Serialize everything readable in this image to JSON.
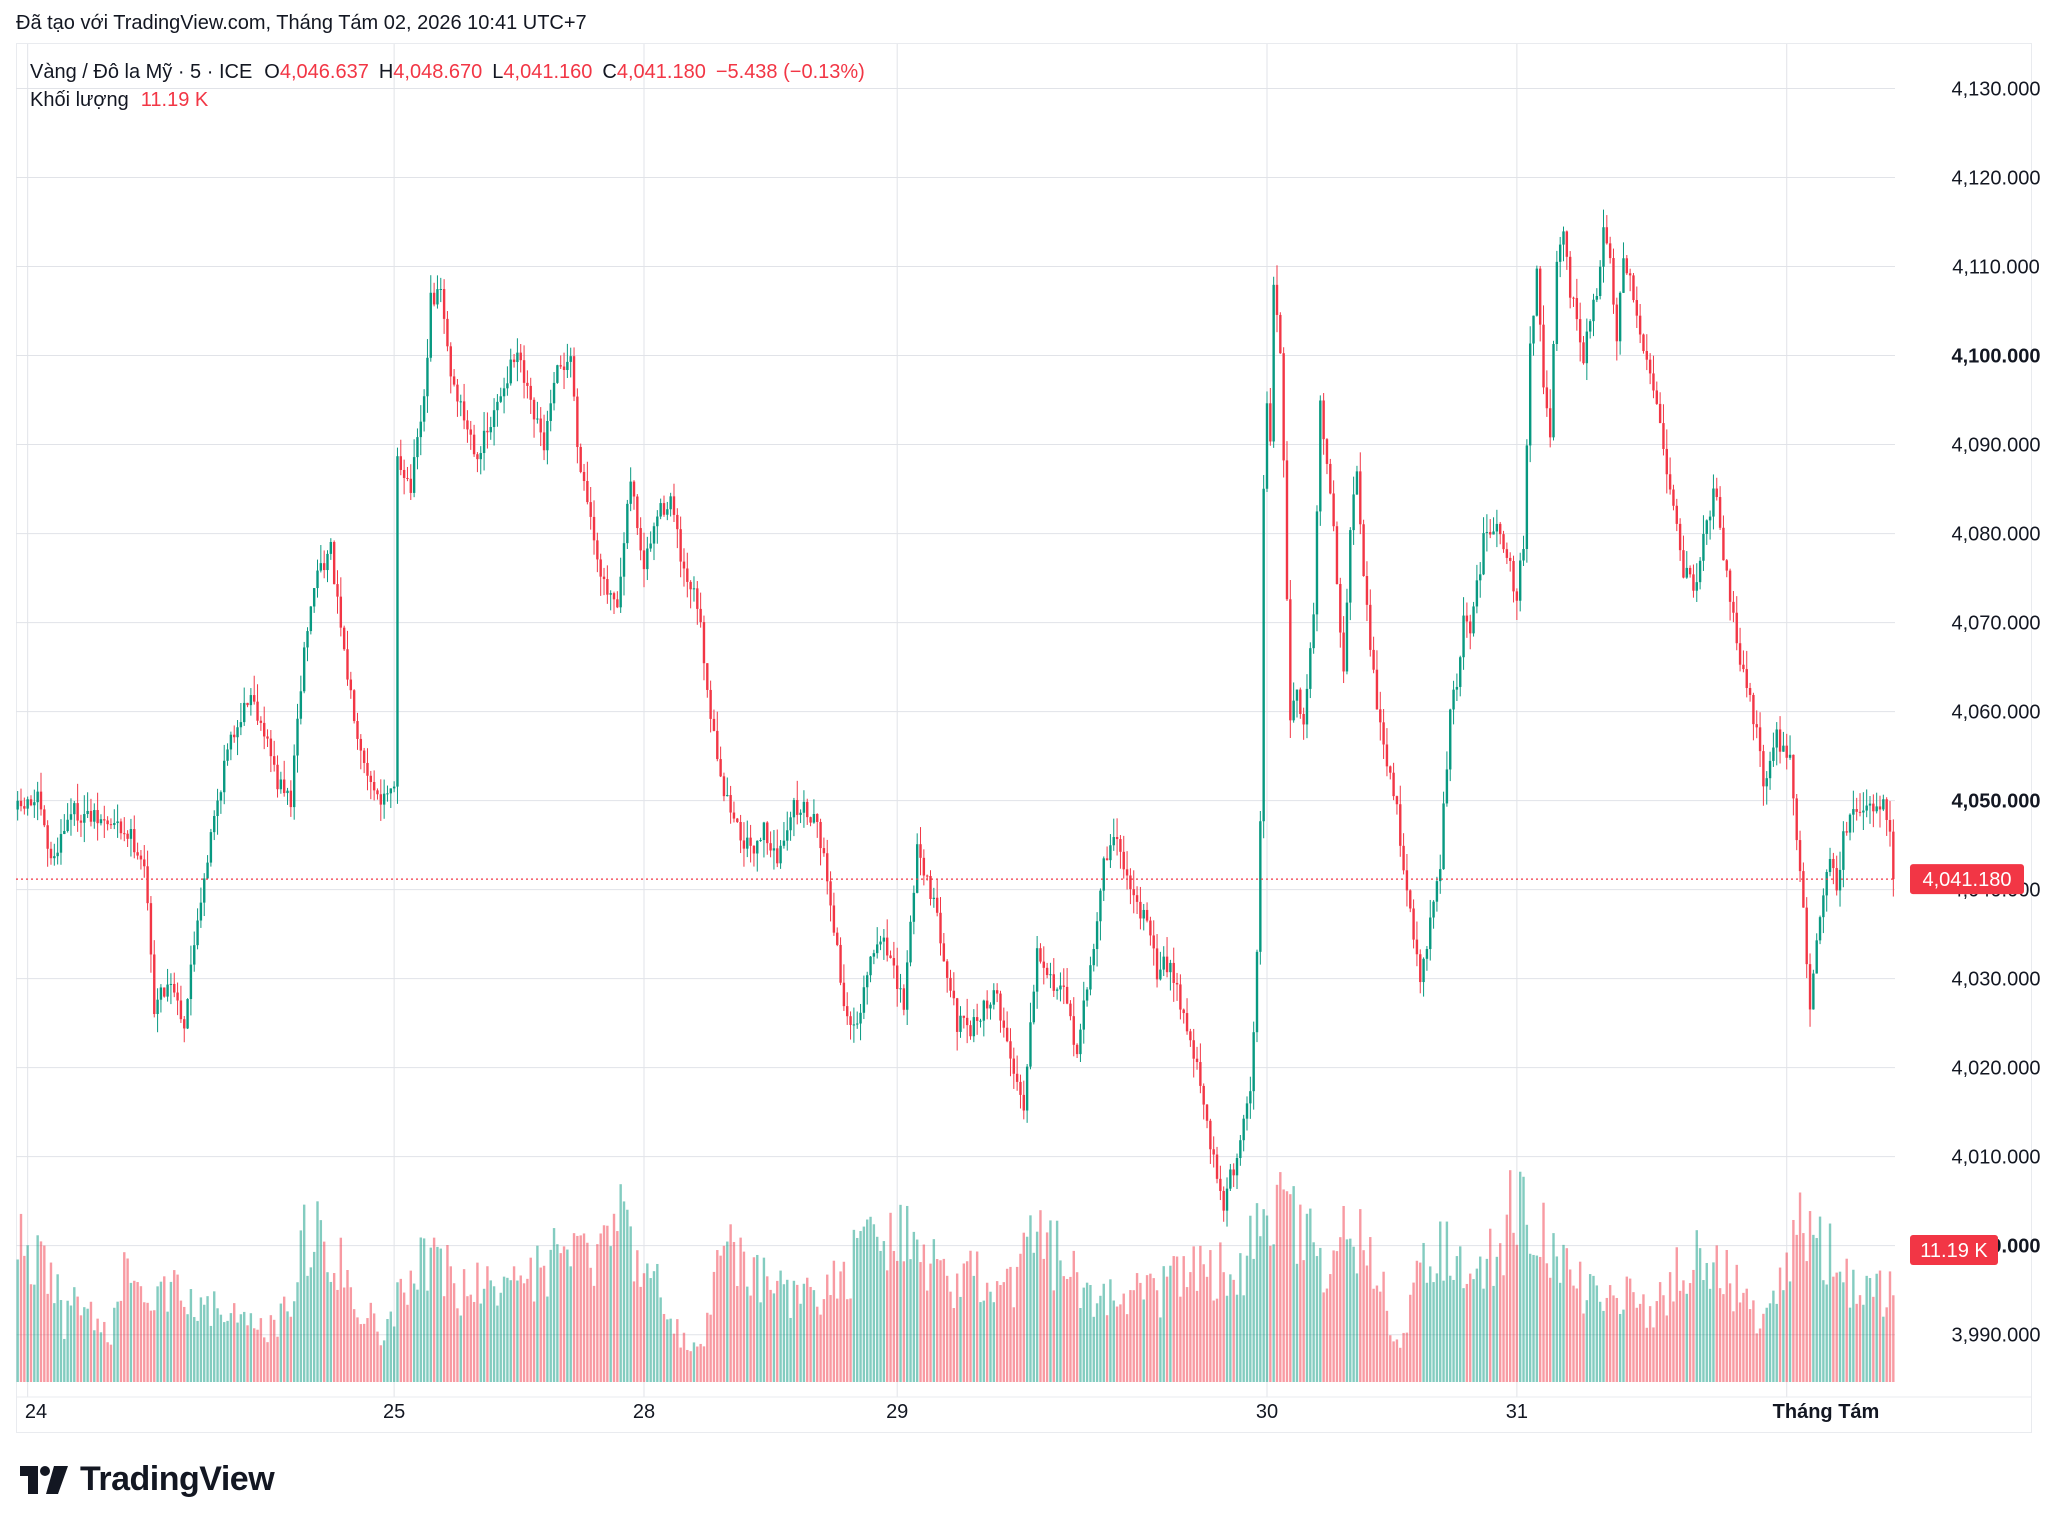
{
  "caption": "Đã tạo với TradingView.com, Tháng Tám 02, 2026 10:41 UTC+7",
  "legend": {
    "symbol": "Vàng / Đô la Mỹ · 5 · ICE",
    "open_label": "O",
    "open": "4,046.637",
    "high_label": "H",
    "high": "4,048.670",
    "low_label": "L",
    "low": "4,041.160",
    "close_label": "C",
    "close": "4,041.180",
    "change": "−5.438 (−0.13%)",
    "volume_label": "Khối lượng",
    "volume": "11.19 K"
  },
  "brand": {
    "name": "TradingView"
  },
  "colors": {
    "up": "#089981",
    "down": "#f23645",
    "grid": "#e1e3e8",
    "text": "#131722"
  },
  "chart_data": {
    "type": "candlestick",
    "symbol": "Vàng / Đô la Mỹ",
    "interval": "5",
    "ylim": [
      3983,
      4135
    ],
    "y_ticks": [
      {
        "value": 4130,
        "label": "4,130.000",
        "bold": false
      },
      {
        "value": 4120,
        "label": "4,120.000",
        "bold": false
      },
      {
        "value": 4110,
        "label": "4,110.000",
        "bold": false
      },
      {
        "value": 4100,
        "label": "4,100.000",
        "bold": true
      },
      {
        "value": 4090,
        "label": "4,090.000",
        "bold": false
      },
      {
        "value": 4080,
        "label": "4,080.000",
        "bold": false
      },
      {
        "value": 4070,
        "label": "4,070.000",
        "bold": false
      },
      {
        "value": 4060,
        "label": "4,060.000",
        "bold": false
      },
      {
        "value": 4050,
        "label": "4,050.000",
        "bold": true
      },
      {
        "value": 4040,
        "label": "4,040.000",
        "bold": false
      },
      {
        "value": 4030,
        "label": "4,030.000",
        "bold": false
      },
      {
        "value": 4020,
        "label": "4,020.000",
        "bold": false
      },
      {
        "value": 4010,
        "label": "4,010.000",
        "bold": false
      },
      {
        "value": 4000,
        "label": "4,000.000",
        "bold": true
      },
      {
        "value": 3990,
        "label": "3,990.000",
        "bold": false
      }
    ],
    "x_labels": [
      "24",
      "25",
      "28",
      "29",
      "30",
      "31",
      "Tháng Tám"
    ],
    "x_label_bold": [
      false,
      false,
      false,
      false,
      false,
      false,
      true
    ],
    "last_price": 4041.18,
    "last_price_label": "4,041.180",
    "last_volume_label": "11.19 K",
    "anchors": [
      [
        0,
        4049
      ],
      [
        6,
        4050
      ],
      [
        10,
        4043
      ],
      [
        16,
        4049
      ],
      [
        22,
        4048
      ],
      [
        30,
        4047
      ],
      [
        34,
        4046
      ],
      [
        38,
        4043
      ],
      [
        41,
        4027
      ],
      [
        46,
        4030
      ],
      [
        50,
        4025
      ],
      [
        54,
        4037
      ],
      [
        58,
        4046
      ],
      [
        62,
        4054
      ],
      [
        66,
        4059
      ],
      [
        70,
        4062
      ],
      [
        74,
        4058
      ],
      [
        78,
        4052
      ],
      [
        82,
        4050
      ],
      [
        86,
        4067
      ],
      [
        90,
        4076
      ],
      [
        94,
        4078
      ],
      [
        98,
        4066
      ],
      [
        102,
        4058
      ],
      [
        106,
        4052
      ],
      [
        110,
        4050
      ],
      [
        113,
        4051
      ],
      [
        114,
        4089
      ],
      [
        118,
        4085
      ],
      [
        122,
        4095
      ],
      [
        124,
        4106
      ],
      [
        127,
        4107
      ],
      [
        130,
        4098
      ],
      [
        134,
        4093
      ],
      [
        138,
        4089
      ],
      [
        142,
        4092
      ],
      [
        146,
        4097
      ],
      [
        150,
        4100
      ],
      [
        154,
        4094
      ],
      [
        158,
        4090
      ],
      [
        162,
        4098
      ],
      [
        166,
        4100
      ],
      [
        168,
        4090
      ],
      [
        172,
        4082
      ],
      [
        176,
        4074
      ],
      [
        180,
        4071
      ],
      [
        184,
        4086
      ],
      [
        188,
        4076
      ],
      [
        192,
        4082
      ],
      [
        196,
        4084
      ],
      [
        200,
        4075
      ],
      [
        204,
        4072
      ],
      [
        208,
        4060
      ],
      [
        212,
        4051
      ],
      [
        216,
        4047
      ],
      [
        220,
        4044
      ],
      [
        224,
        4047
      ],
      [
        228,
        4043
      ],
      [
        232,
        4049
      ],
      [
        236,
        4049
      ],
      [
        240,
        4048
      ],
      [
        244,
        4039
      ],
      [
        248,
        4027
      ],
      [
        252,
        4024
      ],
      [
        256,
        4032
      ],
      [
        260,
        4035
      ],
      [
        264,
        4029
      ],
      [
        266,
        4027
      ],
      [
        270,
        4045
      ],
      [
        274,
        4040
      ],
      [
        278,
        4033
      ],
      [
        282,
        4025
      ],
      [
        286,
        4024
      ],
      [
        290,
        4027
      ],
      [
        294,
        4028
      ],
      [
        298,
        4021
      ],
      [
        302,
        4016
      ],
      [
        306,
        4034
      ],
      [
        310,
        4030
      ],
      [
        314,
        4028
      ],
      [
        318,
        4022
      ],
      [
        322,
        4031
      ],
      [
        326,
        4043
      ],
      [
        330,
        4046
      ],
      [
        334,
        4040
      ],
      [
        338,
        4037
      ],
      [
        342,
        4031
      ],
      [
        346,
        4032
      ],
      [
        350,
        4026
      ],
      [
        354,
        4020
      ],
      [
        358,
        4011
      ],
      [
        362,
        4005
      ],
      [
        366,
        4010
      ],
      [
        370,
        4018
      ],
      [
        372,
        4032
      ],
      [
        373,
        4048
      ],
      [
        374,
        4085
      ],
      [
        375,
        4094
      ],
      [
        376,
        4090
      ],
      [
        377,
        4108
      ],
      [
        379,
        4101
      ],
      [
        382,
        4060
      ],
      [
        384,
        4063
      ],
      [
        386,
        4058
      ],
      [
        389,
        4072
      ],
      [
        391,
        4094
      ],
      [
        394,
        4085
      ],
      [
        398,
        4064
      ],
      [
        400,
        4080
      ],
      [
        402,
        4088
      ],
      [
        404,
        4076
      ],
      [
        408,
        4060
      ],
      [
        410,
        4056
      ],
      [
        414,
        4049
      ],
      [
        418,
        4037
      ],
      [
        421,
        4030
      ],
      [
        424,
        4036
      ],
      [
        427,
        4043
      ],
      [
        430,
        4060
      ],
      [
        432,
        4063
      ],
      [
        434,
        4070
      ],
      [
        436,
        4069
      ],
      [
        440,
        4079
      ],
      [
        444,
        4082
      ],
      [
        448,
        4076
      ],
      [
        450,
        4073
      ],
      [
        452,
        4079
      ],
      [
        454,
        4101
      ],
      [
        456,
        4110
      ],
      [
        458,
        4096
      ],
      [
        460,
        4091
      ],
      [
        462,
        4110
      ],
      [
        464,
        4113
      ],
      [
        466,
        4107
      ],
      [
        468,
        4104
      ],
      [
        470,
        4100
      ],
      [
        474,
        4107
      ],
      [
        476,
        4114
      ],
      [
        478,
        4110
      ],
      [
        480,
        4102
      ],
      [
        482,
        4110
      ],
      [
        484,
        4108
      ],
      [
        488,
        4101
      ],
      [
        491,
        4097
      ],
      [
        494,
        4090
      ],
      [
        497,
        4083
      ],
      [
        500,
        4076
      ],
      [
        504,
        4074
      ],
      [
        506,
        4081
      ],
      [
        510,
        4085
      ],
      [
        512,
        4078
      ],
      [
        516,
        4068
      ],
      [
        520,
        4061
      ],
      [
        522,
        4058
      ],
      [
        524,
        4052
      ],
      [
        528,
        4057
      ],
      [
        532,
        4055
      ],
      [
        536,
        4037
      ],
      [
        538,
        4027
      ],
      [
        540,
        4035
      ],
      [
        544,
        4044
      ],
      [
        546,
        4040
      ],
      [
        548,
        4046
      ],
      [
        552,
        4049
      ],
      [
        556,
        4049
      ],
      [
        560,
        4050
      ],
      [
        562,
        4047
      ],
      [
        563,
        4041.18
      ]
    ],
    "volume_ylim": [
      0,
      80000
    ],
    "volume_levels": [
      [
        0,
        46000
      ],
      [
        10,
        40000
      ],
      [
        14,
        20000
      ],
      [
        18,
        30000
      ],
      [
        22,
        22000
      ],
      [
        28,
        16000
      ],
      [
        32,
        35000
      ],
      [
        36,
        28000
      ],
      [
        40,
        25000
      ],
      [
        46,
        32000
      ],
      [
        54,
        30000
      ],
      [
        60,
        25000
      ],
      [
        68,
        20000
      ],
      [
        76,
        18000
      ],
      [
        82,
        30000
      ],
      [
        86,
        48000
      ],
      [
        92,
        55000
      ],
      [
        98,
        38000
      ],
      [
        106,
        22000
      ],
      [
        110,
        14000
      ],
      [
        114,
        32000
      ],
      [
        120,
        42000
      ],
      [
        126,
        45000
      ],
      [
        132,
        30000
      ],
      [
        140,
        34000
      ],
      [
        146,
        38000
      ],
      [
        152,
        30000
      ],
      [
        158,
        40000
      ],
      [
        164,
        45000
      ],
      [
        170,
        40000
      ],
      [
        176,
        52000
      ],
      [
        180,
        58000
      ],
      [
        186,
        48000
      ],
      [
        190,
        38000
      ],
      [
        196,
        22000
      ],
      [
        202,
        10000
      ],
      [
        206,
        16000
      ],
      [
        210,
        38000
      ],
      [
        214,
        45000
      ],
      [
        218,
        42000
      ],
      [
        222,
        34000
      ],
      [
        228,
        38000
      ],
      [
        234,
        28000
      ],
      [
        240,
        30000
      ],
      [
        246,
        35000
      ],
      [
        252,
        42000
      ],
      [
        260,
        48000
      ],
      [
        266,
        58000
      ],
      [
        270,
        52000
      ],
      [
        276,
        38000
      ],
      [
        282,
        30000
      ],
      [
        288,
        38000
      ],
      [
        294,
        28000
      ],
      [
        300,
        38000
      ],
      [
        306,
        48000
      ],
      [
        312,
        44000
      ],
      [
        318,
        38000
      ],
      [
        324,
        30000
      ],
      [
        330,
        34000
      ],
      [
        336,
        30000
      ],
      [
        342,
        30000
      ],
      [
        348,
        38000
      ],
      [
        354,
        42000
      ],
      [
        360,
        40000
      ],
      [
        366,
        30000
      ],
      [
        370,
        48000
      ],
      [
        374,
        62000
      ],
      [
        378,
        68000
      ],
      [
        382,
        58000
      ],
      [
        386,
        52000
      ],
      [
        390,
        44000
      ],
      [
        394,
        38000
      ],
      [
        398,
        52000
      ],
      [
        402,
        48000
      ],
      [
        406,
        44000
      ],
      [
        410,
        30000
      ],
      [
        414,
        12000
      ],
      [
        418,
        28000
      ],
      [
        422,
        40000
      ],
      [
        426,
        46000
      ],
      [
        430,
        44000
      ],
      [
        436,
        32000
      ],
      [
        440,
        38000
      ],
      [
        446,
        52000
      ],
      [
        450,
        62000
      ],
      [
        454,
        56000
      ],
      [
        458,
        48000
      ],
      [
        464,
        44000
      ],
      [
        470,
        34000
      ],
      [
        476,
        30000
      ],
      [
        482,
        30000
      ],
      [
        488,
        24000
      ],
      [
        494,
        30000
      ],
      [
        500,
        40000
      ],
      [
        506,
        42000
      ],
      [
        512,
        40000
      ],
      [
        518,
        28000
      ],
      [
        522,
        20000
      ],
      [
        526,
        28000
      ],
      [
        532,
        42000
      ],
      [
        536,
        58000
      ],
      [
        540,
        52000
      ],
      [
        544,
        44000
      ],
      [
        548,
        34000
      ],
      [
        554,
        30000
      ],
      [
        560,
        30000
      ],
      [
        563,
        30000
      ]
    ]
  }
}
